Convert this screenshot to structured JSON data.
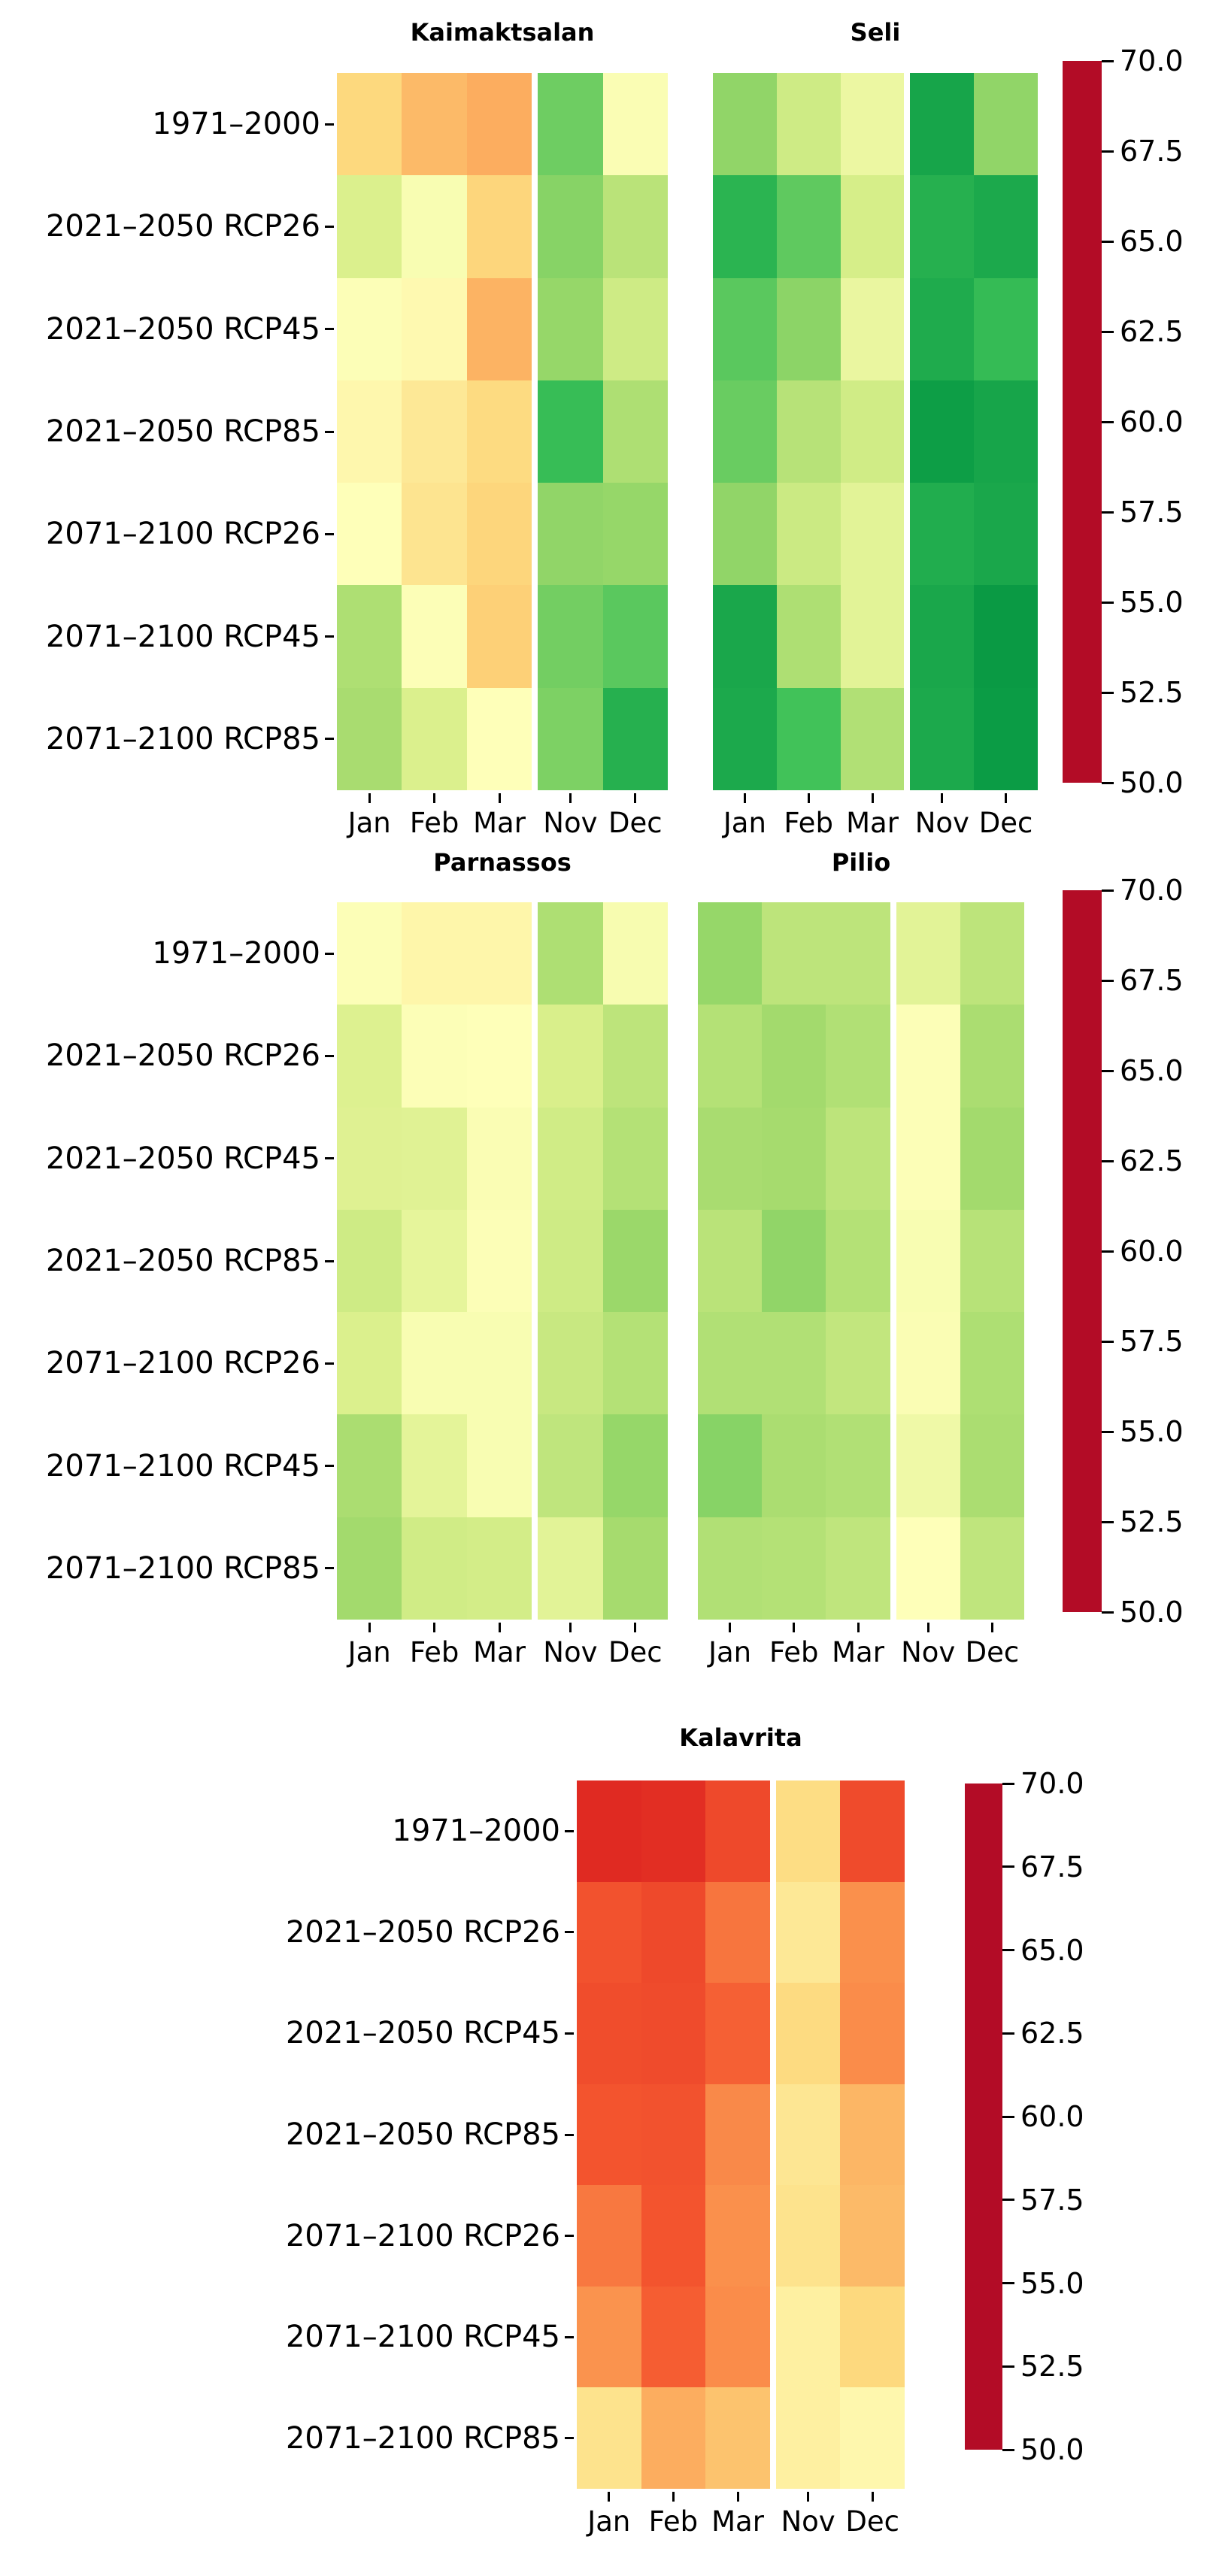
{
  "figure": {
    "background": "#ffffff",
    "text_color": "#000000"
  },
  "colorbar": {
    "vmin": 50,
    "vmax": 70,
    "tick_labels": [
      "70.0",
      "67.5",
      "65.0",
      "62.5",
      "60.0",
      "57.5",
      "55.0",
      "52.5",
      "50.0"
    ],
    "colormap_name": "RdYlGn",
    "colormap_anchors": [
      "#b30c26",
      "#e02a22",
      "#f4562f",
      "#fb9a51",
      "#fdd97e",
      "#feffb9",
      "#d9ef8b",
      "#a0d96b",
      "#3cc158",
      "#0b9c45",
      "#006b35"
    ]
  },
  "chart_data": [
    {
      "type": "heatmap",
      "title": "Kaimaktsalan",
      "x_labels": [
        "Jan",
        "Feb",
        "Mar",
        "Nov",
        "Dec"
      ],
      "y_labels": [
        "1971–2000",
        "2021–2050 RCP26",
        "2021–2050 RCP45",
        "2021–2050 RCP85",
        "2071–2100 RCP26",
        "2071–2100 RCP45",
        "2071–2100 RCP85"
      ],
      "vmin": 50,
      "vmax": 70,
      "colormap": "RdYlGn",
      "values": [
        [
          58.0,
          57.0,
          56.6,
          65.0,
          60.2
        ],
        [
          61.9,
          60.3,
          57.9,
          64.5,
          63.1
        ],
        [
          60.1,
          59.7,
          56.8,
          64.2,
          62.4
        ],
        [
          59.6,
          58.8,
          58.1,
          66.2,
          63.5
        ],
        [
          60.0,
          58.6,
          57.9,
          64.3,
          64.2
        ],
        [
          63.5,
          60.1,
          57.7,
          64.9,
          65.4
        ],
        [
          63.7,
          61.9,
          60.0,
          64.7,
          66.9
        ]
      ]
    },
    {
      "type": "heatmap",
      "title": "Seli",
      "x_labels": [
        "Jan",
        "Feb",
        "Mar",
        "Nov",
        "Dec"
      ],
      "y_labels": [
        "1971–2000",
        "2021–2050 RCP26",
        "2021–2050 RCP45",
        "2021–2050 RCP85",
        "2071–2100 RCP26",
        "2071–2100 RCP45",
        "2071–2100 RCP85"
      ],
      "vmin": 50,
      "vmax": 70,
      "colormap": "RdYlGn",
      "values": [
        [
          64.3,
          62.4,
          61.0,
          67.5,
          64.3
        ],
        [
          66.7,
          65.3,
          62.1,
          66.9,
          67.3
        ],
        [
          65.4,
          64.4,
          61.1,
          67.2,
          66.3
        ],
        [
          65.1,
          63.2,
          62.3,
          67.9,
          67.5
        ],
        [
          64.3,
          62.5,
          61.5,
          67.1,
          67.4
        ],
        [
          67.4,
          63.5,
          61.5,
          67.4,
          68.1
        ],
        [
          67.3,
          65.9,
          63.4,
          67.3,
          68.0
        ]
      ]
    },
    {
      "type": "heatmap",
      "title": "Parnassos",
      "x_labels": [
        "Jan",
        "Feb",
        "Mar",
        "Nov",
        "Dec"
      ],
      "y_labels": [
        "1971–2000",
        "2021–2050 RCP26",
        "2021–2050 RCP45",
        "2021–2050 RCP85",
        "2071–2100 RCP26",
        "2071–2100 RCP45",
        "2071–2100 RCP85"
      ],
      "vmin": 50,
      "vmax": 70,
      "colormap": "RdYlGn",
      "values": [
        [
          60.1,
          59.5,
          59.5,
          63.5,
          60.4
        ],
        [
          61.8,
          60.1,
          60.0,
          62.0,
          63.0
        ],
        [
          61.7,
          61.6,
          60.2,
          62.3,
          63.3
        ],
        [
          62.4,
          61.3,
          60.1,
          62.4,
          64.1
        ],
        [
          61.9,
          60.3,
          60.3,
          62.6,
          63.3
        ],
        [
          63.6,
          61.4,
          60.3,
          62.9,
          64.2
        ],
        [
          63.9,
          62.3,
          62.2,
          61.5,
          63.8
        ]
      ]
    },
    {
      "type": "heatmap",
      "title": "Pilio",
      "x_labels": [
        "Jan",
        "Feb",
        "Mar",
        "Nov",
        "Dec"
      ],
      "y_labels": [
        "1971–2000",
        "2021–2050 RCP26",
        "2021–2050 RCP45",
        "2021–2050 RCP85",
        "2071–2100 RCP26",
        "2071–2100 RCP45",
        "2071–2100 RCP85"
      ],
      "vmin": 50,
      "vmax": 70,
      "colormap": "RdYlGn",
      "values": [
        [
          64.2,
          63.0,
          63.0,
          61.5,
          63.0
        ],
        [
          63.3,
          63.9,
          63.4,
          60.1,
          63.6
        ],
        [
          63.7,
          63.8,
          63.0,
          60.1,
          63.9
        ],
        [
          63.1,
          64.3,
          63.3,
          60.3,
          63.2
        ],
        [
          63.4,
          63.4,
          62.8,
          60.2,
          63.5
        ],
        [
          64.5,
          63.6,
          63.4,
          60.8,
          63.6
        ],
        [
          63.4,
          63.3,
          62.9,
          60.0,
          62.9
        ]
      ]
    },
    {
      "type": "heatmap",
      "title": "Kalavrita",
      "x_labels": [
        "Jan",
        "Feb",
        "Mar",
        "Nov",
        "Dec"
      ],
      "y_labels": [
        "1971–2000",
        "2021–2050 RCP26",
        "2021–2050 RCP45",
        "2021–2050 RCP85",
        "2071–2100 RCP26",
        "2071–2100 RCP45",
        "2071–2100 RCP85"
      ],
      "vmin": 50,
      "vmax": 70,
      "colormap": "RdYlGn",
      "values": [
        [
          52.0,
          52.2,
          53.4,
          58.2,
          53.5
        ],
        [
          53.8,
          53.4,
          54.9,
          58.8,
          55.7
        ],
        [
          53.6,
          53.5,
          54.3,
          58.1,
          55.6
        ],
        [
          53.9,
          53.8,
          55.5,
          58.7,
          56.9
        ],
        [
          55.0,
          53.9,
          55.7,
          58.5,
          57.0
        ],
        [
          55.8,
          54.2,
          55.6,
          59.2,
          58.0
        ],
        [
          58.5,
          56.6,
          57.3,
          59.2,
          59.6
        ]
      ]
    }
  ]
}
